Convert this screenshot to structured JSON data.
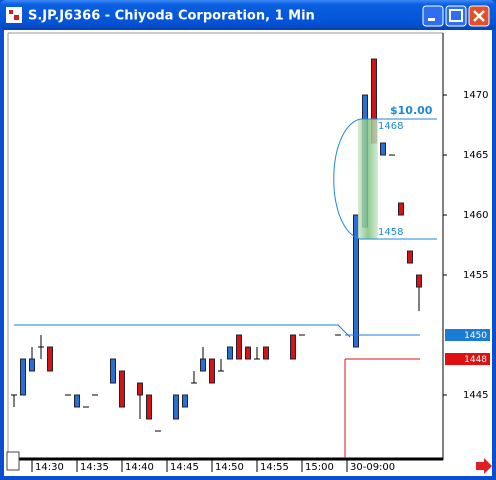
{
  "window": {
    "title": "S.JP.J6366 - Chiyoda Corporation, 1 Min"
  },
  "chart_data": {
    "type": "candlestick",
    "categories": [
      null,
      null,
      "14:30",
      null,
      null,
      null,
      null,
      "14:35",
      null,
      null,
      null,
      null,
      "14:40",
      null,
      null,
      null,
      null,
      "14:45",
      null,
      null,
      null,
      null,
      "14:50",
      null,
      null,
      null,
      null,
      "14:55",
      null,
      null,
      null,
      null,
      "15:00",
      null,
      null,
      null,
      null,
      "30-09:00",
      null,
      null,
      null,
      null,
      null,
      null,
      null,
      null
    ],
    "open": [
      1445,
      1445,
      1447,
      1449,
      1449,
      null,
      1445,
      1444,
      1444,
      1445,
      null,
      1446,
      1447,
      null,
      1446,
      1445,
      1442,
      null,
      1443,
      1444,
      1446,
      1447,
      1448,
      1447,
      1448,
      1450,
      1449,
      1448,
      1449,
      null,
      null,
      1450,
      1450,
      null,
      null,
      null,
      1450,
      null,
      1449,
      1459,
      1473,
      1465,
      1465,
      1461,
      1457,
      1455
    ],
    "high": [
      1445,
      1448,
      1449,
      1450,
      1449,
      null,
      1445,
      1445,
      1444,
      1445,
      null,
      1448,
      1447,
      null,
      1446,
      1445,
      1442,
      null,
      1445,
      1445,
      1447,
      1449,
      1448,
      1448,
      1449,
      1450,
      1449,
      1449,
      1449,
      null,
      null,
      1450,
      1450,
      null,
      null,
      null,
      1450,
      null,
      1460,
      1470,
      1473,
      1466,
      1465,
      1461,
      1457,
      1455
    ],
    "low": [
      1444,
      1445,
      1447,
      1448,
      1447,
      null,
      1445,
      1444,
      1444,
      1445,
      null,
      1446,
      1444,
      null,
      1443,
      1443,
      1442,
      null,
      1443,
      1444,
      1446,
      1447,
      1446,
      1447,
      1448,
      1448,
      1448,
      1448,
      1448,
      null,
      null,
      1448,
      1450,
      null,
      null,
      null,
      1450,
      null,
      1449,
      1459,
      1466,
      1465,
      1465,
      1460,
      1456,
      1452
    ],
    "close": [
      1445,
      1448,
      1448,
      1449,
      1447,
      null,
      1445,
      1445,
      1444,
      1445,
      null,
      1448,
      1444,
      null,
      1445,
      1443,
      1442,
      null,
      1445,
      1445,
      1446,
      1448,
      1446,
      1447,
      1449,
      1448,
      1448,
      1448,
      1448,
      null,
      null,
      1448,
      1450,
      null,
      null,
      null,
      1450,
      null,
      1460,
      1470,
      1466,
      1466,
      1465,
      1460,
      1456,
      1454
    ],
    "up_color": "#2a6fd4",
    "down_color": "#d41414",
    "ylim": [
      1439.75,
      1475.17
    ],
    "yticks": [
      1445,
      1455,
      1460,
      1465,
      1470
    ],
    "price_markers": [
      {
        "value": 1450,
        "color": "#1c7cd5"
      },
      {
        "value": 1448,
        "color": "#e01010"
      }
    ],
    "annotation": {
      "label": "$10.00",
      "high": 1468,
      "low": 1458,
      "color": "#1c8ad8"
    }
  }
}
